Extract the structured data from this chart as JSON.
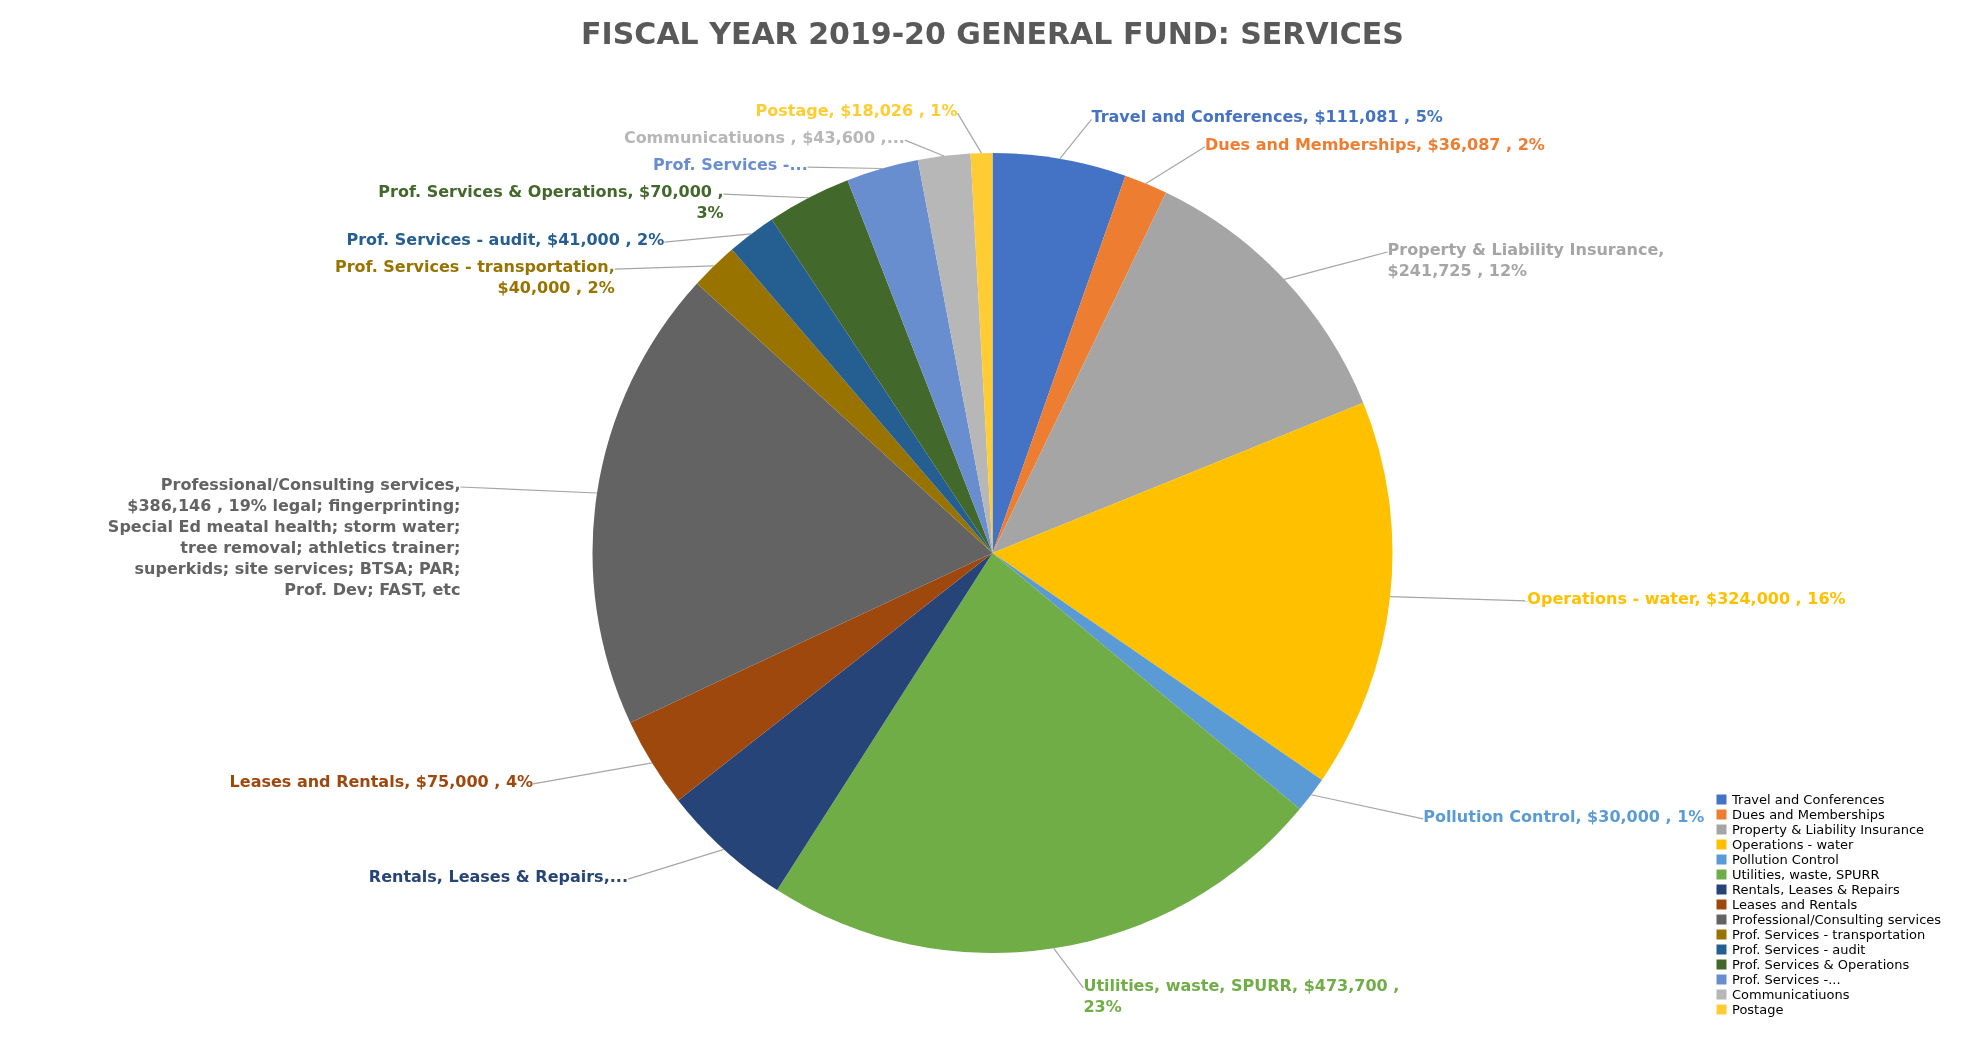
{
  "chart_data": {
    "type": "pie",
    "title": "FISCAL YEAR 2019-20 GENERAL FUND: SERVICES",
    "categories": [
      "Travel and Conferences",
      "Dues and Memberships",
      "Property & Liability Insurance",
      "Operations - water",
      "Pollution Control",
      "Utilities, waste, SPURR",
      "Rentals, Leases & Repairs",
      "Leases and Rentals",
      "Professional/Consulting services",
      "Prof. Services - transportation",
      "Prof. Services - audit",
      "Prof. Services & Operations",
      "Prof. Services -...",
      "Communicatiuons",
      "Postage"
    ],
    "values": [
      111081,
      36087,
      241725,
      324000,
      30000,
      473700,
      110000,
      75000,
      386146,
      40000,
      41000,
      70000,
      60000,
      43600,
      18026
    ],
    "colors": [
      "#4472c4",
      "#ed7d31",
      "#a5a5a5",
      "#ffc000",
      "#5b9bd5",
      "#70ad47",
      "#264478",
      "#9e480e",
      "#636363",
      "#997300",
      "#255e91",
      "#43682b",
      "#698ed0",
      "#b7b7b7",
      "#ffcd33"
    ],
    "value_labels": [
      "Travel and Conferences, $111,081 , 5%",
      "Dues and Memberships, $36,087 , 2%",
      "Property & Liability Insurance, $241,725 , 12%",
      "Operations - water, $324,000 , 16%",
      "Pollution Control, $30,000 , 1%",
      "Utilities, waste, SPURR, $473,700 , 23%",
      "Rentals, Leases & Repairs,...",
      "Leases and Rentals, $75,000 , 4%",
      "Professional/Consulting services, $386,146 , 19% legal; fingerprinting; Special Ed meatal health; storm water; tree removal; athletics trainer; superkids; site services; BTSA; PAR; Prof. Dev; FAST, etc",
      "Prof. Services - transportation, $40,000 , 2%",
      "Prof. Services - audit, $41,000 , 2%",
      "Prof. Services & Operations, $70,000 , 3%",
      "Prof. Services -...",
      "Communicatiuons , $43,600 ,...",
      "Postage, $18,026 , 1%"
    ],
    "legend": "bottom right"
  }
}
